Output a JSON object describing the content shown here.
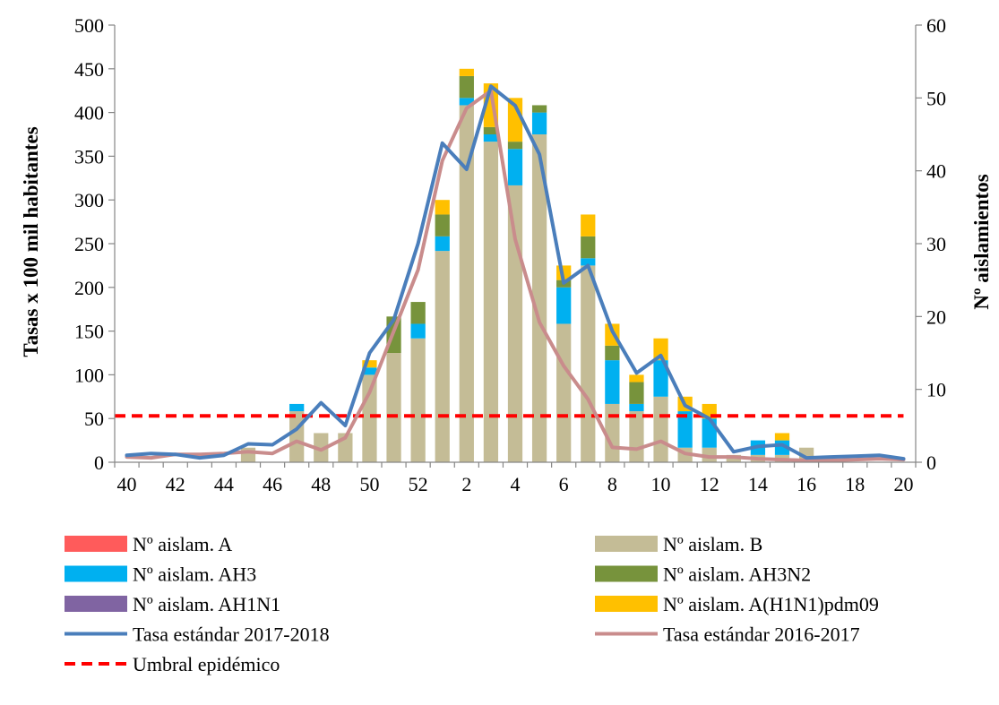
{
  "chart_data": {
    "type": "bar",
    "title": "",
    "ylabel_left": "Tasas x 100 mil habitantes",
    "ylabel_right": "Nº aislamientos",
    "ylim_left": [
      0,
      500
    ],
    "ylim_right": [
      0,
      60
    ],
    "yticks_left": [
      0,
      50,
      100,
      150,
      200,
      250,
      300,
      350,
      400,
      450,
      500
    ],
    "yticks_right": [
      0,
      10,
      20,
      30,
      40,
      50,
      60
    ],
    "weeks": [
      40,
      41,
      42,
      43,
      44,
      45,
      46,
      47,
      48,
      49,
      50,
      51,
      52,
      1,
      2,
      3,
      4,
      5,
      6,
      7,
      8,
      9,
      10,
      11,
      12,
      13,
      14,
      15,
      16,
      17,
      18,
      19,
      20
    ],
    "xtick_labels": [
      "40",
      "42",
      "44",
      "46",
      "48",
      "50",
      "52",
      "2",
      "4",
      "6",
      "8",
      "10",
      "12",
      "14",
      "16",
      "18",
      "20"
    ],
    "legend_placement": "bottom",
    "grid": false,
    "bar_series": [
      {
        "key": "A",
        "name": "Nº aislam. A",
        "color": "#ff5b5b",
        "values": [
          0,
          0,
          0,
          0,
          0,
          0,
          0,
          0,
          0,
          0,
          0,
          0,
          0,
          0,
          0,
          0,
          0,
          0,
          0,
          0,
          0,
          0,
          0,
          0,
          0,
          0,
          0,
          0,
          0,
          0,
          0,
          0,
          0
        ]
      },
      {
        "key": "B",
        "name": "Nº aislam. B",
        "color": "#c4bc96",
        "values": [
          0,
          0,
          0,
          0,
          0,
          2,
          0,
          7,
          4,
          4,
          12,
          15,
          17,
          29,
          49,
          44,
          38,
          45,
          19,
          27,
          8,
          7,
          9,
          2,
          2,
          1,
          1,
          1,
          2,
          0,
          0,
          0,
          0
        ]
      },
      {
        "key": "AH3",
        "name": "Nº aislam. AH3",
        "color": "#00b0f0",
        "values": [
          0,
          0,
          0,
          0,
          0,
          0,
          0,
          1,
          0,
          0,
          1,
          0,
          2,
          2,
          1,
          1,
          5,
          3,
          5,
          1,
          6,
          1,
          5,
          5,
          4,
          0,
          2,
          2,
          0,
          0,
          0,
          0,
          0
        ]
      },
      {
        "key": "AH3N2",
        "name": "Nº aislam. AH3N2",
        "color": "#77933c",
        "values": [
          0,
          0,
          0,
          0,
          0,
          0,
          0,
          0,
          0,
          0,
          0,
          5,
          3,
          3,
          3,
          1,
          1,
          1,
          1,
          3,
          2,
          3,
          0,
          0,
          0,
          0,
          0,
          0,
          0,
          0,
          0,
          0,
          0
        ]
      },
      {
        "key": "AH1N1",
        "name": "Nº aislam. AH1N1",
        "color": "#8064a2",
        "values": [
          0,
          0,
          0,
          0,
          0,
          0,
          0,
          0,
          0,
          0,
          0,
          0,
          0,
          0,
          0,
          0,
          0,
          0,
          0,
          0,
          0,
          0,
          0,
          0,
          0,
          0,
          0,
          0,
          0,
          0,
          0,
          0,
          0
        ]
      },
      {
        "key": "pdm09",
        "name": "Nº aislam. A(H1N1)pdm09",
        "color": "#ffc000",
        "values": [
          0,
          0,
          0,
          0,
          0,
          0,
          0,
          0,
          0,
          0,
          1,
          0,
          0,
          2,
          1,
          6,
          6,
          0,
          2,
          3,
          3,
          1,
          3,
          2,
          2,
          0,
          0,
          1,
          0,
          0,
          0,
          0,
          0
        ]
      }
    ],
    "line_series": [
      {
        "key": "t1718",
        "name": "Tasa estándar 2017-2018",
        "color": "#4a7ebb",
        "values": [
          8,
          10,
          9,
          5,
          8,
          21,
          20,
          38,
          68,
          42,
          125,
          163,
          250,
          365,
          335,
          430,
          408,
          352,
          205,
          225,
          150,
          102,
          122,
          65,
          50,
          12,
          18,
          20,
          5,
          6,
          7,
          8,
          4
        ]
      },
      {
        "key": "t1617",
        "name": "Tasa estándar 2016-2017",
        "color": "#c98c8c",
        "values": [
          6,
          5,
          9,
          9,
          10,
          12,
          10,
          24,
          14,
          28,
          80,
          150,
          220,
          345,
          405,
          425,
          255,
          160,
          110,
          72,
          17,
          15,
          24,
          10,
          6,
          6,
          4,
          3,
          2,
          2,
          3,
          4,
          3
        ]
      }
    ],
    "threshold": {
      "name": "Umbral epidémico",
      "value": 53,
      "color": "#ff0000"
    }
  }
}
